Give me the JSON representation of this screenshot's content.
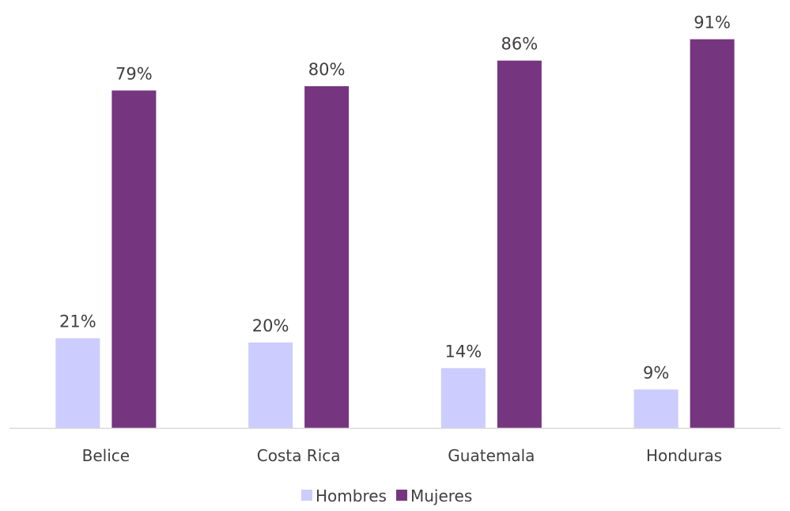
{
  "chart_data": {
    "type": "bar",
    "categories": [
      "Belice",
      "Costa Rica",
      "Guatemala",
      "Honduras"
    ],
    "series": [
      {
        "name": "Hombres",
        "values": [
          21,
          20,
          14,
          9
        ],
        "labels": [
          "21%",
          "20%",
          "14%",
          "9%"
        ],
        "color": "#ccccff"
      },
      {
        "name": "Mujeres",
        "values": [
          79,
          80,
          86,
          91
        ],
        "labels": [
          "79%",
          "80%",
          "86%",
          "91%"
        ],
        "color": "#76357f"
      }
    ],
    "title": "",
    "xlabel": "",
    "ylabel": "",
    "ylim": [
      0,
      100
    ],
    "grid": false,
    "legend": "bottom-center",
    "axis_color": "#d9d9d9"
  }
}
